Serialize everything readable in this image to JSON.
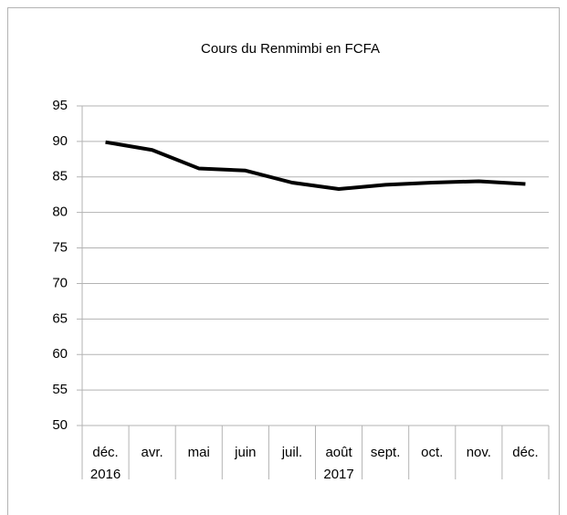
{
  "chart_data": {
    "type": "line",
    "title": "Cours du Renmimbi en FCFA",
    "categories": [
      "déc.",
      "avr.",
      "mai",
      "juin",
      "juil.",
      "août",
      "sept.",
      "oct.",
      "nov.",
      "déc."
    ],
    "category_groups": [
      "2016",
      "2017",
      null,
      null,
      null,
      null,
      null,
      null,
      null,
      null
    ],
    "values": [
      89.9,
      88.8,
      86.2,
      85.9,
      84.2,
      83.3,
      83.9,
      84.2,
      84.4,
      84.0
    ],
    "color": "#000000",
    "ylim": [
      50,
      95
    ],
    "yticks": [
      50,
      55,
      60,
      65,
      70,
      75,
      80,
      85,
      90,
      95
    ],
    "grid": true
  }
}
